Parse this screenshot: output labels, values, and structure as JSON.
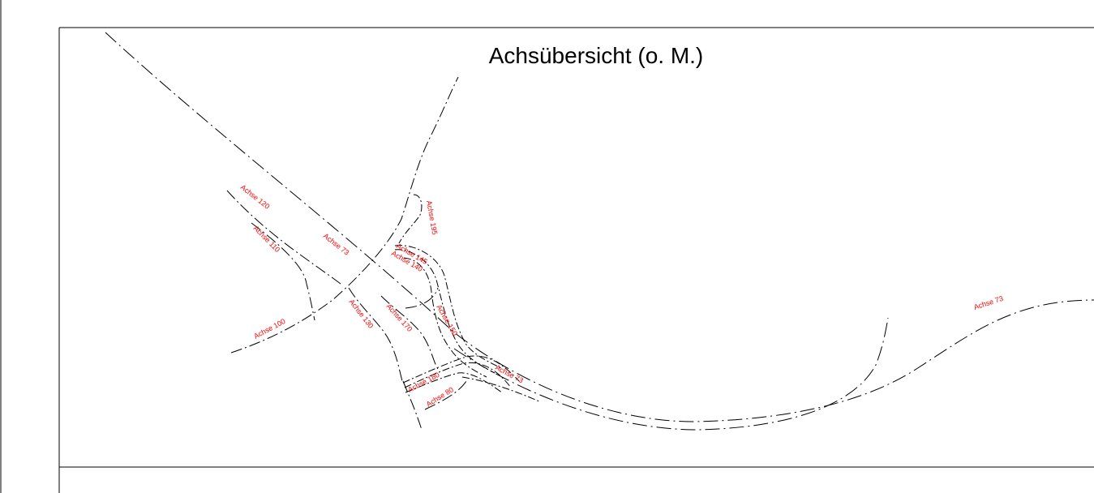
{
  "drawing": {
    "title": "Achsübersicht (o. M.)",
    "label_color": "#ff0000",
    "line_color": "#000000",
    "axis_labels": [
      "Achse 120",
      "Achse 110",
      "Achse 73",
      "Achse 195",
      "Achse 145",
      "Achse 140",
      "Achse 130",
      "Achse 170",
      "Achse 150",
      "Achse 100",
      "Achse 73",
      "Achse 180",
      "Achse 80",
      "Achse 73"
    ]
  }
}
